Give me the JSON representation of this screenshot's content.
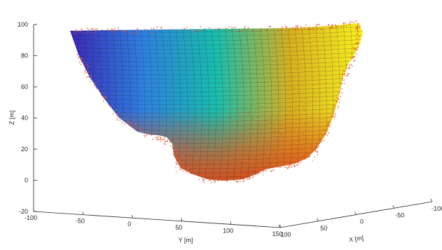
{
  "chart_data": {
    "type": "surface3d",
    "title": "",
    "xlabel": "X [m]",
    "ylabel": "Y [m]",
    "zlabel": "Z [m]",
    "xlim": [
      -100,
      100
    ],
    "ylim": [
      -100,
      150
    ],
    "zlim": [
      -20,
      100
    ],
    "x_ticks": [
      "100",
      "50",
      "0",
      "-50",
      "-100"
    ],
    "y_ticks": [
      "-100",
      "-50",
      "0",
      "50",
      "100",
      "150"
    ],
    "z_ticks": [
      "100",
      "80",
      "60",
      "40",
      "20",
      "0",
      "-20"
    ],
    "colormap": [
      "#3b28b8",
      "#2f80e0",
      "#17bfae",
      "#d8b020",
      "#f8f020"
    ],
    "point_color": "#e8502a",
    "grid": false,
    "series": [
      {
        "kind": "mesh surface"
      },
      {
        "kind": "point cloud"
      }
    ]
  }
}
